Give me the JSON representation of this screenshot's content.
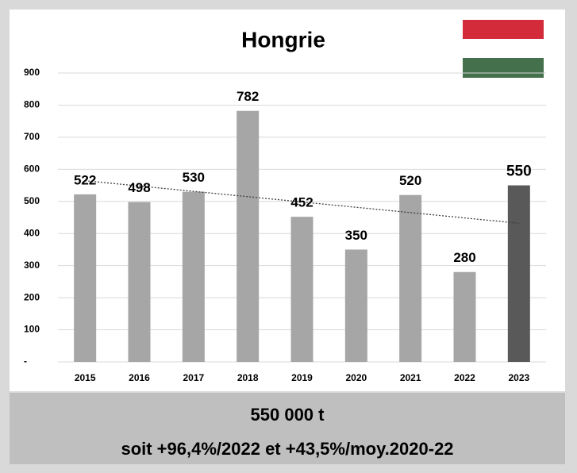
{
  "chart_data": {
    "type": "bar",
    "title": "Hongrie",
    "categories": [
      "2015",
      "2016",
      "2017",
      "2018",
      "2019",
      "2020",
      "2021",
      "2022",
      "2023"
    ],
    "values": [
      522,
      498,
      530,
      782,
      452,
      350,
      520,
      280,
      550
    ],
    "colors": [
      "#a6a6a6",
      "#a6a6a6",
      "#a6a6a6",
      "#a6a6a6",
      "#a6a6a6",
      "#a6a6a6",
      "#a6a6a6",
      "#a6a6a6",
      "#595959"
    ],
    "ylim": [
      0,
      900
    ],
    "yticks": [
      {
        "value": 0,
        "label": "-"
      },
      100,
      200,
      300,
      400,
      500,
      600,
      700,
      800,
      900
    ],
    "grid": true,
    "trendline": true,
    "footer": [
      "550 000 t",
      "soit +96,4%/2022 et +43,5%/moy.2020-22"
    ]
  }
}
